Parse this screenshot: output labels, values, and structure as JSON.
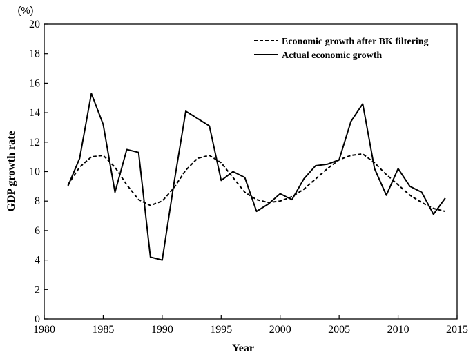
{
  "chart_data": {
    "type": "line",
    "title": "",
    "xlabel": "Year",
    "ylabel": "GDP growth rate",
    "y_unit": "(%)",
    "xlim": [
      1980,
      2015
    ],
    "ylim": [
      0,
      20
    ],
    "x_ticks": [
      1980,
      1985,
      1990,
      1995,
      2000,
      2005,
      2010,
      2015
    ],
    "y_ticks": [
      0,
      2,
      4,
      6,
      8,
      10,
      12,
      14,
      16,
      18,
      20
    ],
    "grid": false,
    "legend_position": "top-right",
    "series": [
      {
        "name": "Economic growth after BK filtering",
        "style": "dashed",
        "color": "#000000",
        "x": [
          1982,
          1983,
          1984,
          1985,
          1986,
          1987,
          1988,
          1989,
          1990,
          1991,
          1992,
          1993,
          1994,
          1995,
          1996,
          1997,
          1998,
          1999,
          2000,
          2001,
          2002,
          2003,
          2004,
          2005,
          2006,
          2007,
          2008,
          2009,
          2010,
          2011,
          2012,
          2013,
          2014
        ],
        "y": [
          9.1,
          10.3,
          11.0,
          11.1,
          10.3,
          9.1,
          8.1,
          7.7,
          8.0,
          8.9,
          10.1,
          10.9,
          11.1,
          10.6,
          9.6,
          8.6,
          8.1,
          7.9,
          8.0,
          8.3,
          8.8,
          9.5,
          10.2,
          10.8,
          11.1,
          11.2,
          10.6,
          9.8,
          9.1,
          8.4,
          7.9,
          7.5,
          7.3
        ]
      },
      {
        "name": "Actual economic growth",
        "style": "solid",
        "color": "#000000",
        "x": [
          1982,
          1983,
          1984,
          1985,
          1986,
          1987,
          1988,
          1989,
          1990,
          1991,
          1992,
          1993,
          1994,
          1995,
          1996,
          1997,
          1998,
          1999,
          2000,
          2001,
          2002,
          2003,
          2004,
          2005,
          2006,
          2007,
          2008,
          2009,
          2010,
          2011,
          2012,
          2013,
          2014
        ],
        "y": [
          9.0,
          10.9,
          15.3,
          13.2,
          8.6,
          11.5,
          11.3,
          4.2,
          4.0,
          9.2,
          14.1,
          13.6,
          13.1,
          9.4,
          10.0,
          9.6,
          7.3,
          7.8,
          8.5,
          8.1,
          9.5,
          10.4,
          10.5,
          10.8,
          13.4,
          14.6,
          10.2,
          8.4,
          10.2,
          9.0,
          8.6,
          7.1,
          8.2
        ]
      }
    ]
  }
}
